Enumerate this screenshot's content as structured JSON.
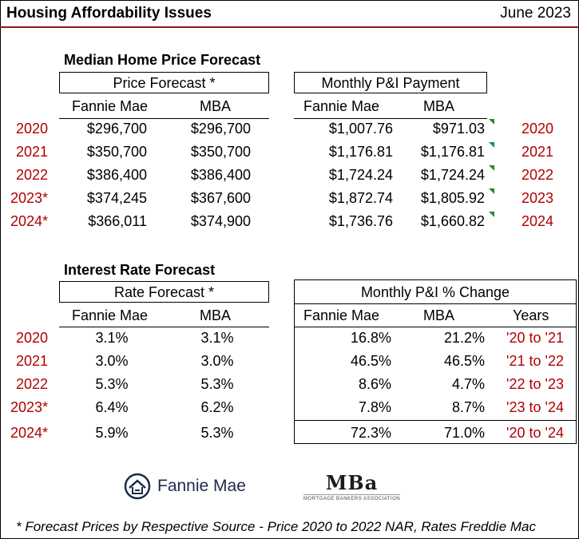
{
  "header": {
    "title": "Housing Affordability Issues",
    "date": "June 2023"
  },
  "price_section": {
    "title": "Median Home Price Forecast",
    "box_left": "Price Forecast *",
    "box_right": "Monthly P&I Payment",
    "col_fannie": "Fannie Mae",
    "col_mba": "MBA",
    "col_fannie2": "Fannie Mae",
    "col_mba2": "MBA",
    "rows": [
      {
        "year": "2020",
        "fannie": "$296,700",
        "mba": "$296,700",
        "pi_fannie": "$1,007.76",
        "pi_mba": "$971.03",
        "year_r": "2020"
      },
      {
        "year": "2021",
        "fannie": "$350,700",
        "mba": "$350,700",
        "pi_fannie": "$1,176.81",
        "pi_mba": "$1,176.81",
        "year_r": "2021"
      },
      {
        "year": "2022",
        "fannie": "$386,400",
        "mba": "$386,400",
        "pi_fannie": "$1,724.24",
        "pi_mba": "$1,724.24",
        "year_r": "2022"
      },
      {
        "year": "2023*",
        "fannie": "$374,245",
        "mba": "$367,600",
        "pi_fannie": "$1,872.74",
        "pi_mba": "$1,805.92",
        "year_r": "2023"
      },
      {
        "year": "2024*",
        "fannie": "$366,011",
        "mba": "$374,900",
        "pi_fannie": "$1,736.76",
        "pi_mba": "$1,660.82",
        "year_r": "2024"
      }
    ]
  },
  "rate_section": {
    "title": "Interest Rate Forecast",
    "box_left": "Rate Forecast *",
    "box_right": "Monthly P&I % Change",
    "col_fannie": "Fannie Mae",
    "col_mba": "MBA",
    "col_fannie2": "Fannie Mae",
    "col_mba2": "MBA",
    "col_years": "Years",
    "rows": [
      {
        "year": "2020",
        "fannie": "3.1%",
        "mba": "3.1%",
        "chg_fannie": "16.8%",
        "chg_mba": "21.2%",
        "span": "'20 to '21"
      },
      {
        "year": "2021",
        "fannie": "3.0%",
        "mba": "3.0%",
        "chg_fannie": "46.5%",
        "chg_mba": "46.5%",
        "span": "'21 to '22"
      },
      {
        "year": "2022",
        "fannie": "5.3%",
        "mba": "5.3%",
        "chg_fannie": "8.6%",
        "chg_mba": "4.7%",
        "span": "'22 to '23"
      },
      {
        "year": "2023*",
        "fannie": "6.4%",
        "mba": "6.2%",
        "chg_fannie": "7.8%",
        "chg_mba": "8.7%",
        "span": "'23 to '24"
      },
      {
        "year": "2024*",
        "fannie": "5.9%",
        "mba": "5.3%",
        "chg_fannie": "72.3%",
        "chg_mba": "71.0%",
        "span": "'20 to '24"
      }
    ]
  },
  "logos": {
    "fannie": "Fannie Mae",
    "mba": "MBa",
    "mba_sub": "MORTGAGE BANKERS ASSOCIATION"
  },
  "footnote": "* Forecast Prices by Respective Source - Price 2020 to 2022 NAR, Rates Freddie Mac",
  "colors": {
    "year_red": "#b00000",
    "header_rule": "#8b1a1a",
    "comment_marker": "#1e8c3a",
    "fannie_navy": "#1c2a4a"
  },
  "icons": {
    "fannie": "fannie-mae-house-logo-icon"
  }
}
